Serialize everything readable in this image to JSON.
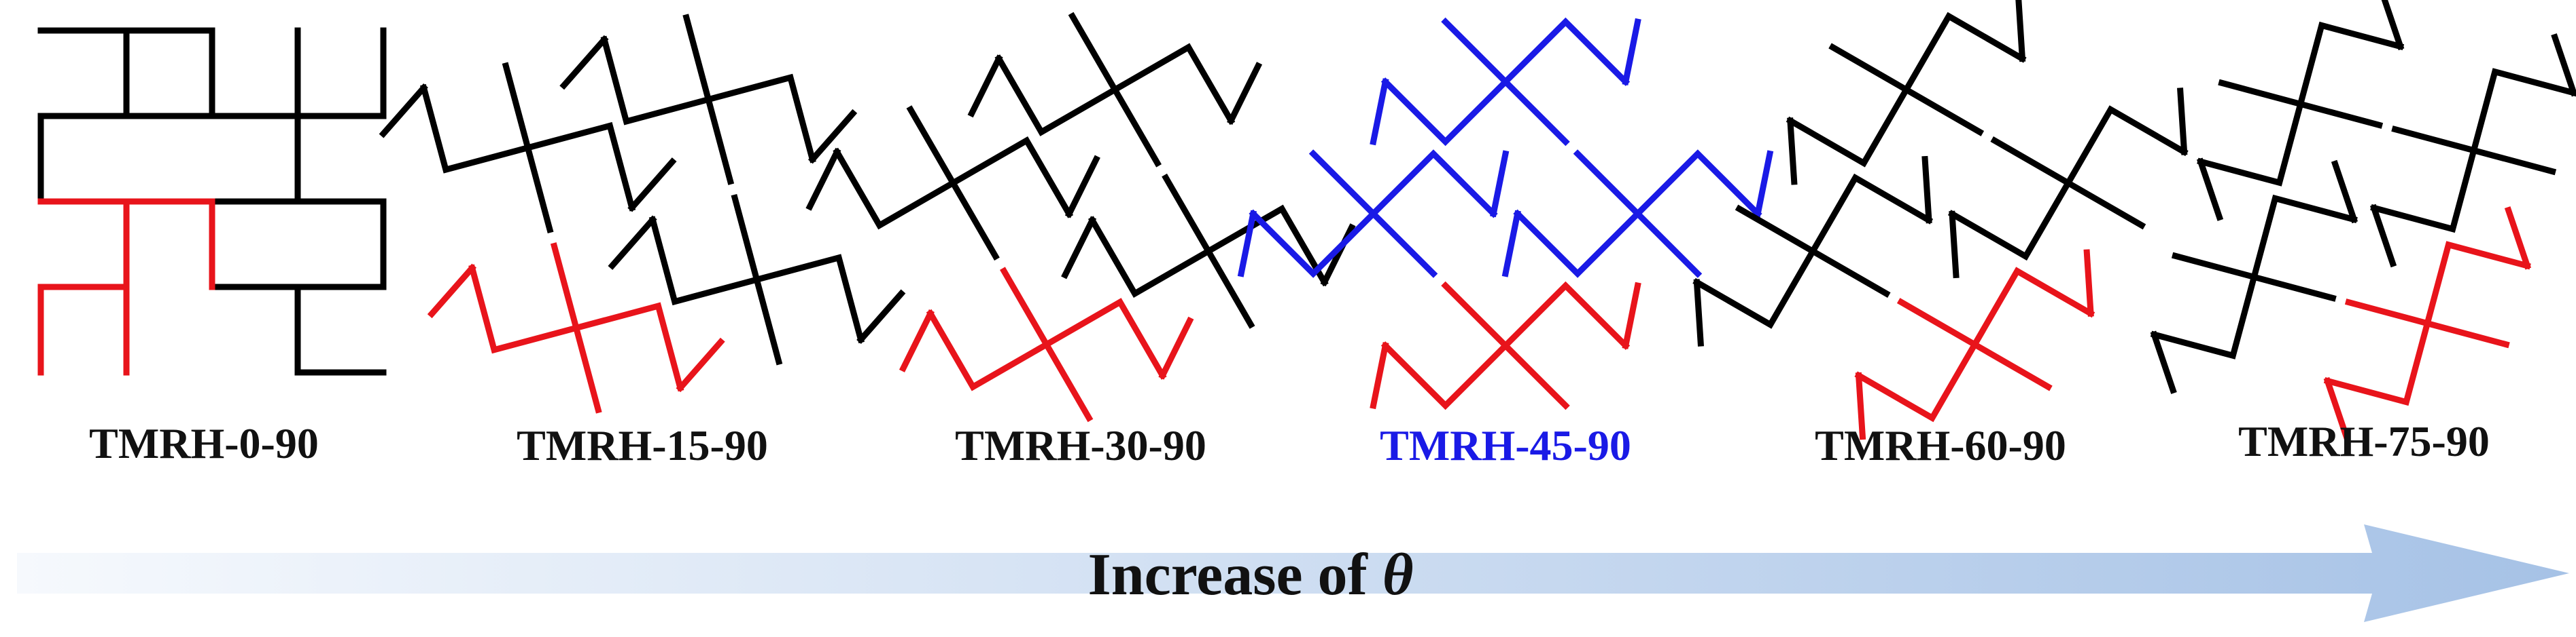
{
  "panels": [
    {
      "label": "TMRH-0-90",
      "highlight": false
    },
    {
      "label": "TMRH-15-90",
      "highlight": false
    },
    {
      "label": "TMRH-30-90",
      "highlight": false
    },
    {
      "label": "TMRH-45-90",
      "highlight": true
    },
    {
      "label": "TMRH-60-90",
      "highlight": false
    },
    {
      "label": "TMRH-75-90",
      "highlight": false
    }
  ],
  "arrow": {
    "text": "Increase of ",
    "symbol": "θ"
  },
  "colors": {
    "structure": "#000000",
    "unit_cell": "#e8141b",
    "highlight": "#1a1ae6",
    "label_default": "#111111",
    "arrow_start": "#f4f8fd",
    "arrow_end": "#a9c4e6"
  }
}
